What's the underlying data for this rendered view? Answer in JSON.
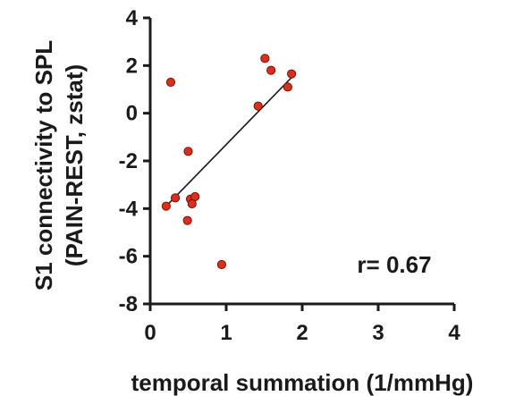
{
  "chart_data": {
    "type": "scatter",
    "title": "",
    "xlabel": "temporal summation (1/mmHg)",
    "ylabel_lines": [
      "S1 connectivity to SPL",
      "(PAIN-REST, zstat)"
    ],
    "xlim": [
      0,
      4
    ],
    "ylim": [
      -8,
      4
    ],
    "x_ticks": [
      0,
      1,
      2,
      3,
      4
    ],
    "y_ticks": [
      4,
      2,
      0,
      -2,
      -4,
      -6,
      -8
    ],
    "grid": false,
    "annotation": "r= 0.67",
    "points": [
      {
        "x": 0.27,
        "y": 1.3
      },
      {
        "x": 0.5,
        "y": -1.6
      },
      {
        "x": 0.21,
        "y": -3.9
      },
      {
        "x": 0.33,
        "y": -3.55
      },
      {
        "x": 0.53,
        "y": -3.6
      },
      {
        "x": 0.59,
        "y": -3.5
      },
      {
        "x": 0.55,
        "y": -3.8
      },
      {
        "x": 0.49,
        "y": -4.5
      },
      {
        "x": 0.94,
        "y": -6.35
      },
      {
        "x": 1.42,
        "y": 0.3
      },
      {
        "x": 1.51,
        "y": 2.3
      },
      {
        "x": 1.59,
        "y": 1.8
      },
      {
        "x": 1.81,
        "y": 1.1
      },
      {
        "x": 1.86,
        "y": 1.65
      }
    ],
    "trendline": {
      "x1": 0.21,
      "y1": -3.9,
      "x2": 1.86,
      "y2": 1.5
    },
    "colors": {
      "marker_fill": "#d7301f",
      "marker_stroke": "#7a1208",
      "axis": "#1a1a1a"
    }
  }
}
